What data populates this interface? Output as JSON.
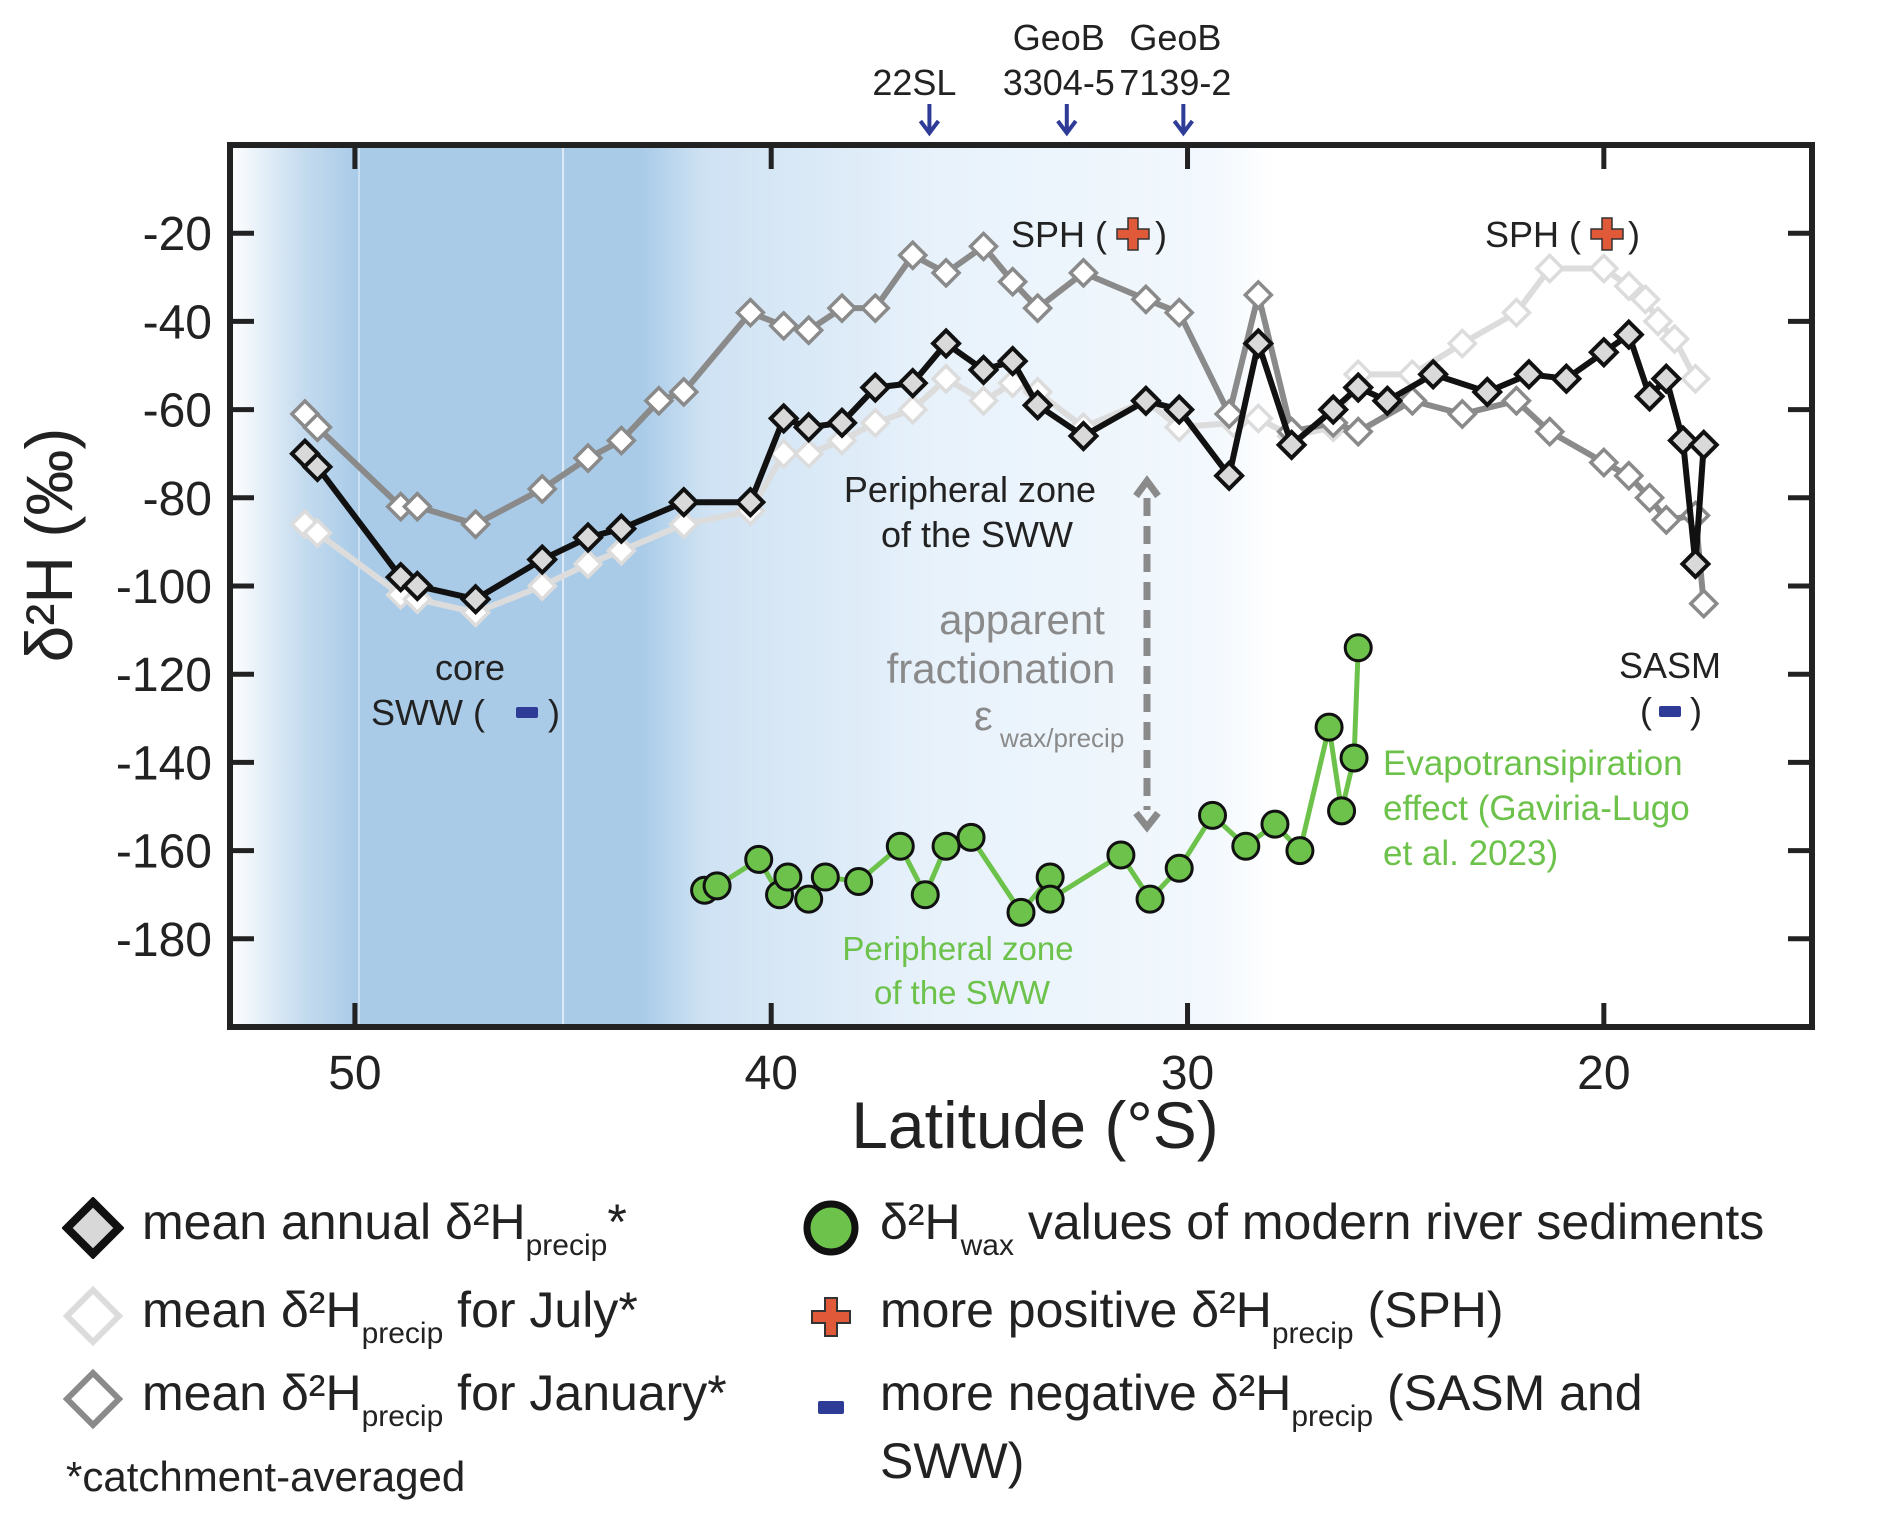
{
  "chart_data": {
    "type": "line",
    "xlabel": "Latitude (°S)",
    "ylabel": "δ²H (‰)",
    "xlim": [
      53,
      15
    ],
    "ylim": [
      -200,
      0
    ],
    "x_ticks": [
      50,
      40,
      30,
      20
    ],
    "y_ticks": [
      -20,
      -40,
      -60,
      -80,
      -100,
      -120,
      -140,
      -160,
      -180
    ],
    "x_tick_labels": [
      "50",
      "40",
      "30",
      "20"
    ],
    "y_tick_labels": [
      "-20",
      "-40",
      "-60",
      "-80",
      "-100",
      "-120",
      "-140",
      "-160",
      "-180"
    ],
    "series": [
      {
        "name": "mean δ²H precip for July*",
        "color": "#dcdcdc",
        "marker": "diamond-open",
        "x": [
          51.2,
          50.9,
          48.9,
          48.5,
          47.1,
          45.5,
          44.4,
          43.6,
          42.1,
          40.5,
          39.7,
          39.1,
          38.3,
          37.5,
          36.6,
          35.8,
          34.9,
          34.2,
          33.6,
          32.5,
          31.0,
          30.2,
          28.9,
          28.3,
          27.5,
          26.5,
          25.9,
          24.6,
          23.4,
          22.1,
          21.3,
          20.0,
          19.4,
          19.0,
          18.7,
          18.3,
          17.8
        ],
        "y": [
          -86,
          -88,
          -102,
          -103,
          -106,
          -100,
          -95,
          -92,
          -86,
          -83,
          -70,
          -70,
          -67,
          -63,
          -60,
          -53,
          -58,
          -54,
          -56,
          -64,
          -58,
          -64,
          -63,
          -62,
          -66,
          -64,
          -52,
          -52,
          -45,
          -38,
          -28,
          -28,
          -32,
          -35,
          -40,
          -44,
          -53
        ]
      },
      {
        "name": "mean δ²H precip for January*",
        "color": "#8a8a8a",
        "marker": "diamond-open",
        "x": [
          51.2,
          50.9,
          48.9,
          48.5,
          47.1,
          45.5,
          44.4,
          43.6,
          42.7,
          42.1,
          40.5,
          39.7,
          39.1,
          38.3,
          37.5,
          36.6,
          35.8,
          34.9,
          34.2,
          33.6,
          32.5,
          31.0,
          30.2,
          29.0,
          28.3,
          27.5,
          26.5,
          25.9,
          24.6,
          23.4,
          22.1,
          21.3,
          20.0,
          19.4,
          18.9,
          18.5,
          17.8,
          17.6
        ],
        "y": [
          -61,
          -64,
          -82,
          -82,
          -86,
          -78,
          -71,
          -67,
          -58,
          -56,
          -38,
          -41,
          -42,
          -37,
          -37,
          -25,
          -29,
          -23,
          -31,
          -37,
          -29,
          -35,
          -38,
          -61,
          -34,
          -65,
          -63,
          -65,
          -58,
          -61,
          -58,
          -65,
          -72,
          -75,
          -80,
          -85,
          -84,
          -104
        ]
      },
      {
        "name": "mean annual δ²H precip*",
        "color": "#111111",
        "marker": "diamond-filled",
        "x": [
          51.2,
          50.9,
          48.9,
          48.5,
          47.1,
          45.5,
          44.4,
          43.6,
          42.1,
          40.5,
          39.7,
          39.1,
          38.3,
          37.5,
          36.6,
          35.8,
          34.9,
          34.2,
          33.6,
          32.5,
          31.0,
          30.2,
          29.0,
          28.3,
          27.5,
          26.5,
          25.9,
          25.2,
          24.1,
          22.8,
          21.8,
          20.9,
          20.0,
          19.4,
          18.9,
          18.5,
          18.1,
          17.8,
          17.6
        ],
        "y": [
          -70,
          -73,
          -98,
          -100,
          -103,
          -94,
          -89,
          -87,
          -81,
          -81,
          -62,
          -64,
          -63,
          -55,
          -54,
          -45,
          -51,
          -49,
          -59,
          -66,
          -58,
          -60,
          -75,
          -45,
          -68,
          -60,
          -55,
          -58,
          -52,
          -56,
          -52,
          -53,
          -47,
          -43,
          -57,
          -53,
          -67,
          -95,
          -68
        ]
      },
      {
        "name": "δ²H wax values of modern river sediments",
        "color": "#6cc24a",
        "marker": "circle-filled",
        "x": [
          41.6,
          41.3,
          40.3,
          39.8,
          39.6,
          39.1,
          38.7,
          37.9,
          36.9,
          36.3,
          35.8,
          35.2,
          34.0,
          33.3,
          33.3,
          31.6,
          30.9,
          30.2,
          29.4,
          28.6,
          27.9,
          27.3,
          26.6,
          26.3,
          26.0,
          25.9
        ],
        "y": [
          -169,
          -168,
          -162,
          -170,
          -166,
          -171,
          -166,
          -167,
          -159,
          -170,
          -159,
          -157,
          -174,
          -166,
          -171,
          -161,
          -171,
          -164,
          -152,
          -159,
          -154,
          -160,
          -132,
          -151,
          -139,
          -114
        ]
      }
    ],
    "markers": [
      {
        "label": "22SL",
        "x": 36.2
      },
      {
        "label": "GeoB 3304-5",
        "x": 32.9
      },
      {
        "label": "GeoB 7139-2",
        "x": 30.1
      }
    ],
    "annotations": {
      "core_sww": [
        "core",
        "SWW (",
        ")"
      ],
      "sph1": [
        "SPH (",
        ")"
      ],
      "sph2": [
        "SPH (",
        ")"
      ],
      "sasm": [
        "SASM",
        "(",
        ")"
      ],
      "peripheral_black": [
        "Peripheral zone",
        "of the SWW"
      ],
      "peripheral_green": [
        "Peripheral zone",
        "of the SWW"
      ],
      "apparent": [
        "apparent",
        "fractionation",
        "ε",
        "wax/precip"
      ],
      "evapo": [
        "Evapotransipiration",
        "effect (Gaviria-Lugo",
        "et al. 2023)"
      ]
    },
    "legend": {
      "items": [
        {
          "parts": [
            "mean annual δ²H",
            "precip",
            "*"
          ],
          "icon": "diamond-filled"
        },
        {
          "parts": [
            "mean δ²H",
            "precip",
            " for July*"
          ],
          "icon": "diamond-light"
        },
        {
          "parts": [
            "mean δ²H",
            "precip",
            " for January*"
          ],
          "icon": "diamond-gray"
        },
        {
          "parts": [
            "δ²H",
            "wax",
            " values of modern river sediments"
          ],
          "icon": "circle-green"
        },
        {
          "parts": [
            "more positive δ²H",
            "precip",
            " (SPH)"
          ],
          "icon": "plus-red"
        },
        {
          "parts": [
            "more negative δ²H",
            "precip",
            " (SASM and"
          ],
          "icon": "minus-blue"
        },
        {
          "parts": [
            "SWW)"
          ],
          "icon": "none"
        }
      ],
      "footnote": "*catchment-averaged"
    }
  }
}
